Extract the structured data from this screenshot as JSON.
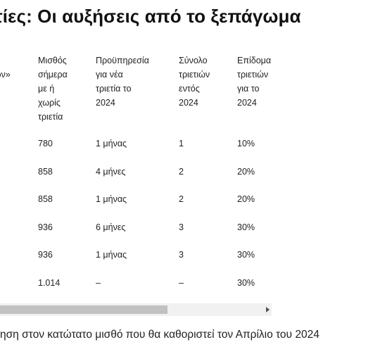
{
  "title": "τίες: Οι αυξήσεις από το ξεπάγωμα",
  "table": {
    "headers": [
      "α\nτών»",
      "Μισθός\nσήμερα\nμε ή\nχωρίς\nτριετία",
      "Προϋπηρεσία\nγια νέα\nτριετία το\n2024",
      "Σύνολο\nτριετιών\nεντός\n2024",
      "Επίδομα\nτριετιών\nγια το\n2024"
    ],
    "rows": [
      [
        "",
        "780",
        "1 μήνας",
        "1",
        "10%"
      ],
      [
        "",
        "858",
        "4 μήνες",
        "2",
        "20%"
      ],
      [
        "",
        "858",
        "1 μήνας",
        "2",
        "20%"
      ],
      [
        "",
        "936",
        "6 μήνες",
        "3",
        "30%"
      ],
      [
        "",
        "936",
        "1 μήνας",
        "3",
        "30%"
      ],
      [
        "",
        "1.014",
        "–",
        "–",
        "30%"
      ]
    ]
  },
  "footnote": "ηση στον κατώτατο μισθό που θα καθοριστεί τον Απρίλιο του 2024"
}
